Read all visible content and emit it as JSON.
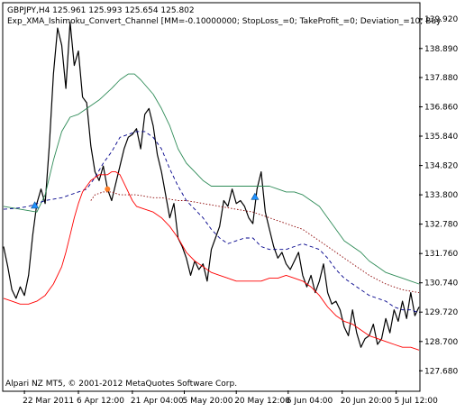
{
  "chart_data": {
    "type": "line",
    "header_line1": "GBPJPY,H4  125.961 125.993 125.654 125.802",
    "header_line2": "Exp_XMA_Ishimoku_Convert_Channel [MM=-0.10000000; StopLoss_=0; TakeProfit_=0; Deviation_=10; Buy",
    "copyright": "Alpari NZ MT5, © 2001-2012 MetaQuotes Software Corp.",
    "ylim": [
      127.0,
      140.45
    ],
    "y_ticks": [
      {
        "value": 139.92,
        "label": "139.920"
      },
      {
        "value": 138.89,
        "label": "138.890"
      },
      {
        "value": 137.88,
        "label": "137.880"
      },
      {
        "value": 136.86,
        "label": "136.860"
      },
      {
        "value": 135.84,
        "label": "135.840"
      },
      {
        "value": 134.82,
        "label": "134.820"
      },
      {
        "value": 133.8,
        "label": "133.800"
      },
      {
        "value": 132.78,
        "label": "132.780"
      },
      {
        "value": 131.76,
        "label": "131.760"
      },
      {
        "value": 130.74,
        "label": "130.740"
      },
      {
        "value": 129.72,
        "label": "129.720"
      },
      {
        "value": 128.7,
        "label": "128.700"
      },
      {
        "value": 127.68,
        "label": "127.680"
      }
    ],
    "xlim": [
      0,
      100
    ],
    "x_ticks": [
      {
        "pos": 5,
        "label": "22 Mar 2011"
      },
      {
        "pos": 18,
        "label": "6 Apr 12:00"
      },
      {
        "pos": 31,
        "label": "21 Apr 04:00"
      },
      {
        "pos": 43.5,
        "label": "5 May 20:00"
      },
      {
        "pos": 56,
        "label": "20 May 12:00"
      },
      {
        "pos": 68.5,
        "label": "6 Jun 04:00"
      },
      {
        "pos": 81.5,
        "label": "20 Jun 20:00"
      },
      {
        "pos": 94.5,
        "label": "5 Jul 12:00"
      }
    ],
    "series": [
      {
        "key": "price",
        "color": "#000000",
        "style": "solid",
        "x": [
          0,
          1,
          2,
          3,
          4,
          5,
          6,
          7,
          8,
          9,
          10,
          11,
          12,
          13,
          14,
          15,
          16,
          17,
          18,
          19,
          20,
          21,
          22,
          23,
          24,
          25,
          26,
          27,
          28,
          29,
          30,
          31,
          32,
          33,
          34,
          35,
          36,
          37,
          38,
          39,
          40,
          41,
          42,
          43,
          44,
          45,
          46,
          47,
          48,
          49,
          50,
          51,
          52,
          53,
          54,
          55,
          56,
          57,
          58,
          59,
          60,
          61,
          62,
          63,
          64,
          65,
          66,
          67,
          68,
          69,
          70,
          71,
          72,
          73,
          74,
          75,
          76,
          77,
          78,
          79,
          80,
          81,
          82,
          83,
          84,
          85,
          86,
          87,
          88,
          89,
          90,
          91,
          92,
          93,
          94,
          95,
          96,
          97,
          98,
          99,
          100
        ],
        "y": [
          132.0,
          131.3,
          130.5,
          130.2,
          130.6,
          130.3,
          131.0,
          132.4,
          133.5,
          134.0,
          133.5,
          135.5,
          138.0,
          139.6,
          139.0,
          137.5,
          139.8,
          138.3,
          138.8,
          137.2,
          137.0,
          135.5,
          134.6,
          134.3,
          134.8,
          134.0,
          133.6,
          134.2,
          134.8,
          135.4,
          135.8,
          135.9,
          136.1,
          135.4,
          136.6,
          136.8,
          136.2,
          135.2,
          134.6,
          133.8,
          133.0,
          133.5,
          132.3,
          132.0,
          131.6,
          131.0,
          131.5,
          131.2,
          131.4,
          130.8,
          131.9,
          132.3,
          132.7,
          133.6,
          133.4,
          134.0,
          133.5,
          133.6,
          133.4,
          133.0,
          132.8,
          134.0,
          134.6,
          133.2,
          132.6,
          132.0,
          131.6,
          131.8,
          131.4,
          131.2,
          131.5,
          131.8,
          131.0,
          130.6,
          131.0,
          130.4,
          130.8,
          131.4,
          130.4,
          130.0,
          130.1,
          129.8,
          129.2,
          128.9,
          129.8,
          129.0,
          128.5,
          128.8,
          128.9,
          129.3,
          128.6,
          128.8,
          129.5,
          129.0,
          129.8,
          129.4,
          130.1,
          129.5,
          130.4,
          129.6,
          129.9
        ]
      },
      {
        "key": "upper-band",
        "color": "#2e8b57",
        "style": "solid",
        "x": [
          0,
          4,
          8,
          10,
          12,
          14,
          16,
          18,
          20,
          23,
          26,
          28,
          30,
          31.5,
          33,
          36,
          38,
          40,
          42,
          44,
          46,
          48,
          50,
          52,
          54,
          56,
          58,
          60,
          62,
          64,
          66,
          68,
          70,
          72,
          74,
          76,
          78,
          80,
          82,
          84,
          86,
          88,
          90,
          92,
          94,
          96,
          98,
          100
        ],
        "y": [
          133.4,
          133.3,
          133.2,
          133.8,
          135.0,
          136.0,
          136.5,
          136.6,
          136.8,
          137.1,
          137.5,
          137.8,
          138.0,
          138.0,
          137.8,
          137.3,
          136.8,
          136.2,
          135.4,
          134.9,
          134.6,
          134.3,
          134.1,
          134.1,
          134.1,
          134.1,
          134.1,
          134.1,
          134.1,
          134.1,
          134.0,
          133.9,
          133.9,
          133.8,
          133.6,
          133.4,
          133.0,
          132.6,
          132.2,
          132.0,
          131.8,
          131.5,
          131.3,
          131.1,
          131.0,
          130.9,
          130.8,
          130.7
        ]
      },
      {
        "key": "middle-line",
        "color": "#00008b",
        "style": "dashed",
        "x": [
          0,
          2,
          4,
          6,
          8,
          10,
          12,
          14,
          16,
          18,
          20,
          22,
          24,
          26,
          28,
          30,
          32,
          34,
          36,
          38,
          40,
          42,
          44,
          46,
          48,
          50,
          52,
          54,
          56,
          58,
          60,
          62,
          64,
          66,
          68,
          70,
          72,
          74,
          76,
          78,
          80,
          82,
          84,
          86,
          88,
          90,
          92,
          94,
          96,
          98,
          100
        ],
        "y": [
          133.3,
          133.32,
          133.35,
          133.4,
          133.5,
          133.6,
          133.65,
          133.7,
          133.8,
          133.9,
          134.0,
          134.4,
          134.9,
          135.3,
          135.8,
          135.9,
          136.0,
          136.0,
          135.8,
          135.4,
          134.7,
          134.1,
          133.6,
          133.3,
          133.0,
          132.6,
          132.3,
          132.1,
          132.2,
          132.3,
          132.3,
          132.0,
          131.9,
          131.9,
          131.9,
          132.0,
          132.1,
          132.0,
          131.9,
          131.6,
          131.2,
          130.9,
          130.7,
          130.5,
          130.3,
          130.2,
          130.1,
          129.9,
          129.8,
          129.8,
          129.7
        ]
      },
      {
        "key": "lower-band",
        "color": "#ff0000",
        "style": "solid",
        "x": [
          0,
          2,
          4,
          6,
          8,
          10,
          12,
          14,
          15,
          16,
          17,
          18,
          19,
          20,
          21,
          22,
          23,
          24,
          25,
          26,
          27,
          28,
          29,
          30,
          31,
          32,
          34,
          36,
          38,
          40,
          42,
          44,
          46,
          48,
          50,
          52,
          54,
          56,
          58,
          60,
          62,
          64,
          66,
          68,
          70,
          72,
          74,
          76,
          78,
          80,
          82,
          84,
          86,
          88,
          90,
          92,
          94,
          96,
          98,
          100
        ],
        "y": [
          130.2,
          130.1,
          130.0,
          130.0,
          130.1,
          130.3,
          130.7,
          131.3,
          131.8,
          132.4,
          133.0,
          133.5,
          133.9,
          134.1,
          134.3,
          134.4,
          134.5,
          134.5,
          134.5,
          134.6,
          134.6,
          134.5,
          134.2,
          133.9,
          133.6,
          133.4,
          133.3,
          133.2,
          133.0,
          132.7,
          132.3,
          131.8,
          131.5,
          131.3,
          131.1,
          131.0,
          130.9,
          130.8,
          130.8,
          130.8,
          130.8,
          130.9,
          130.9,
          131.0,
          130.9,
          130.8,
          130.6,
          130.3,
          129.9,
          129.6,
          129.4,
          129.3,
          129.1,
          128.9,
          128.8,
          128.7,
          128.6,
          128.5,
          128.5,
          128.4
        ]
      },
      {
        "key": "channel-trail",
        "color": "#8b0000",
        "style": "dotted",
        "x": [
          21,
          22,
          24,
          26,
          28,
          30,
          32,
          34,
          36,
          38,
          40,
          42,
          44,
          46,
          48,
          50,
          52,
          54,
          56,
          58,
          60,
          62,
          64,
          66,
          68,
          70,
          72,
          74,
          76,
          78,
          80,
          82,
          84,
          86,
          88,
          90,
          92,
          94,
          96,
          98,
          100
        ],
        "y": [
          133.6,
          133.8,
          133.9,
          133.9,
          133.8,
          133.8,
          133.8,
          133.75,
          133.7,
          133.7,
          133.65,
          133.6,
          133.6,
          133.55,
          133.5,
          133.45,
          133.4,
          133.35,
          133.3,
          133.25,
          133.2,
          133.1,
          133.0,
          132.9,
          132.8,
          132.7,
          132.6,
          132.4,
          132.2,
          132.0,
          131.8,
          131.6,
          131.4,
          131.2,
          131.0,
          130.85,
          130.7,
          130.6,
          130.5,
          130.45,
          130.4
        ]
      }
    ],
    "markers": [
      {
        "key": "buy-arrow-1",
        "x": 7.5,
        "y": 133.4,
        "color": "#1e90ff"
      },
      {
        "key": "buy-arrow-2",
        "x": 60.5,
        "y": 133.7,
        "color": "#1e90ff"
      },
      {
        "key": "exit-dot-1",
        "x": 25.0,
        "y": 134.0,
        "color": "#ff7f27"
      }
    ],
    "colors": {
      "background": "#ffffff",
      "frame": "#000000",
      "text": "#000000"
    }
  }
}
